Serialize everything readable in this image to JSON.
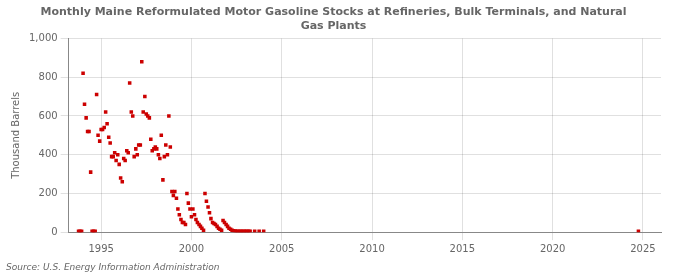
{
  "chart_data": {
    "type": "scatter",
    "title": "Monthly Maine Reformulated Motor Gasoline Stocks at Refineries, Bulk Terminals, and Natural\nGas Plants",
    "ylabel": "Thousand Barrels",
    "source": "Source: U.S. Energy Information Administration",
    "color": "#cc0000",
    "marker": "square",
    "grid": true,
    "xlim": [
      1993.2,
      2026
    ],
    "ylim": [
      0,
      1000
    ],
    "xticks": [
      1995,
      2000,
      2005,
      2010,
      2015,
      2020,
      2025
    ],
    "yticks": [
      0,
      200,
      400,
      600,
      800,
      {
        "value": 1000,
        "label": "1,000"
      }
    ],
    "x": [
      1993.75,
      1993.83,
      1993.92,
      1994.0,
      1994.08,
      1994.17,
      1994.25,
      1994.33,
      1994.42,
      1994.5,
      1994.58,
      1994.67,
      1994.75,
      1994.83,
      1994.92,
      1995.0,
      1995.08,
      1995.17,
      1995.25,
      1995.33,
      1995.42,
      1995.5,
      1995.58,
      1995.67,
      1995.75,
      1995.83,
      1995.92,
      1996.0,
      1996.08,
      1996.17,
      1996.25,
      1996.33,
      1996.42,
      1996.5,
      1996.58,
      1996.67,
      1996.75,
      1996.83,
      1996.92,
      1997.0,
      1997.08,
      1997.17,
      1997.25,
      1997.33,
      1997.42,
      1997.5,
      1997.58,
      1997.67,
      1997.75,
      1997.83,
      1997.92,
      1998.0,
      1998.08,
      1998.17,
      1998.25,
      1998.33,
      1998.42,
      1998.5,
      1998.58,
      1998.67,
      1998.75,
      1998.83,
      1998.92,
      1999.0,
      1999.08,
      1999.17,
      1999.25,
      1999.33,
      1999.42,
      1999.5,
      1999.58,
      1999.67,
      1999.75,
      1999.83,
      1999.92,
      2000.0,
      2000.08,
      2000.17,
      2000.25,
      2000.33,
      2000.42,
      2000.5,
      2000.58,
      2000.67,
      2000.75,
      2000.83,
      2000.92,
      2001.0,
      2001.08,
      2001.17,
      2001.25,
      2001.33,
      2001.42,
      2001.5,
      2001.58,
      2001.67,
      2001.75,
      2001.83,
      2001.92,
      2002.0,
      2002.08,
      2002.17,
      2002.25,
      2002.33,
      2002.42,
      2002.5,
      2002.58,
      2002.67,
      2002.75,
      2002.83,
      2002.92,
      2003.0,
      2003.08,
      2003.17,
      2003.25,
      2003.5,
      2003.75,
      2004.0,
      2024.75
    ],
    "values": [
      5,
      5,
      5,
      820,
      660,
      590,
      520,
      520,
      310,
      5,
      5,
      5,
      710,
      500,
      470,
      530,
      530,
      540,
      620,
      560,
      490,
      460,
      390,
      390,
      410,
      370,
      400,
      350,
      280,
      260,
      380,
      370,
      420,
      410,
      770,
      620,
      600,
      390,
      430,
      400,
      450,
      450,
      880,
      620,
      700,
      610,
      600,
      590,
      480,
      420,
      430,
      440,
      430,
      400,
      380,
      500,
      270,
      390,
      450,
      400,
      600,
      440,
      210,
      190,
      210,
      175,
      120,
      90,
      65,
      50,
      50,
      40,
      200,
      150,
      120,
      80,
      120,
      90,
      65,
      50,
      40,
      30,
      20,
      10,
      200,
      160,
      130,
      100,
      70,
      50,
      45,
      40,
      30,
      20,
      15,
      10,
      60,
      50,
      40,
      30,
      20,
      15,
      10,
      8,
      6,
      5,
      5,
      5,
      5,
      5,
      5,
      5,
      5,
      5,
      5,
      5,
      5,
      5,
      5
    ]
  }
}
